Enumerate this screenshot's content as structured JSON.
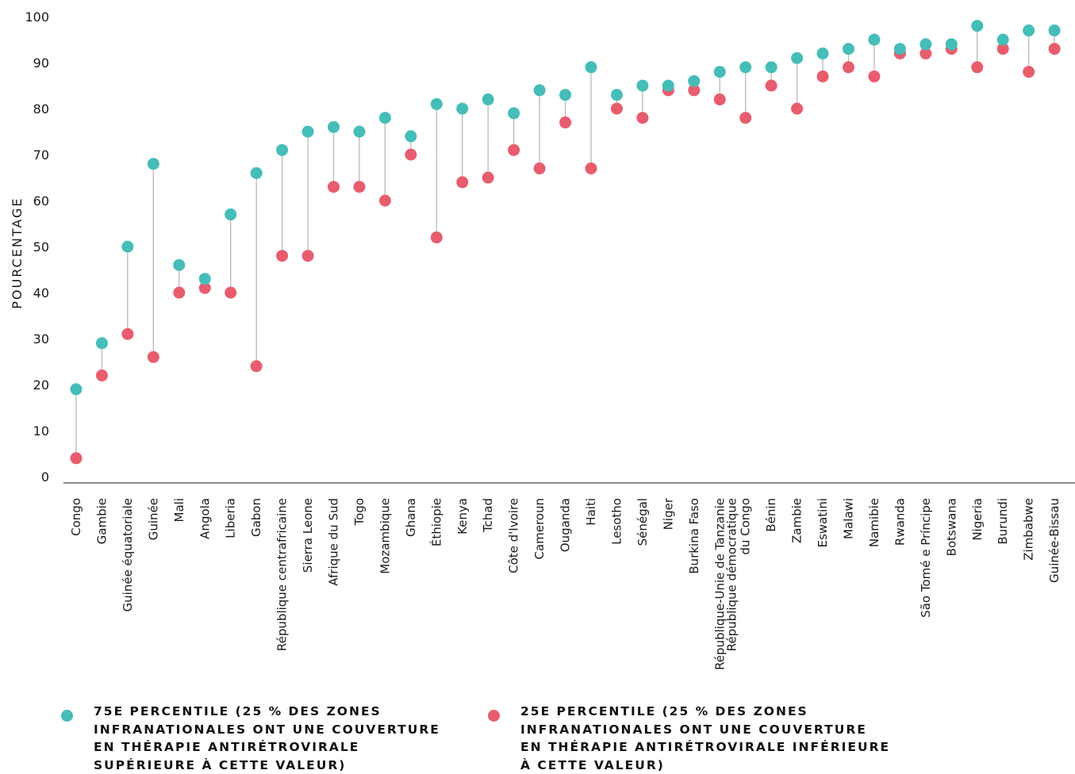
{
  "chart_data": {
    "type": "dumbbell",
    "ylabel": "POURCENTAGE",
    "ylim": [
      0,
      100
    ],
    "yticks": [
      0,
      10,
      20,
      30,
      40,
      50,
      60,
      70,
      80,
      90,
      100
    ],
    "grid": false,
    "legend_position": "bottom",
    "categories": [
      "Congo",
      "Gambie",
      "Guinée équatoriale",
      "Guinée",
      "Mali",
      "Angola",
      "Liberia",
      "Gabon",
      "République centrafricaine",
      "Sierra Leone",
      "Afrique du Sud",
      "Togo",
      "Mozambique",
      "Ghana",
      "Éthiopie",
      "Kenya",
      "Tchad",
      "Côte d'Ivoire",
      "Cameroun",
      "Ouganda",
      "Haiti",
      "Lesotho",
      "Sénégal",
      "Niger",
      "Burkina Faso",
      "République-Unie de Tanzanie",
      "République démocratique\ndu Congo",
      "Bénin",
      "Zambie",
      "Eswatini",
      "Malawi",
      "Namibie",
      "Rwanda",
      "São Tomé e Príncipe",
      "Botswana",
      "Nigeria",
      "Burundi",
      "Zimbabwe",
      "Guinée-Bissau"
    ],
    "series": [
      {
        "name": "75E PERCENTILE (25 % DES ZONES INFRANATIONALES ONT UNE COUVERTURE EN THÉRAPIE ANTIRÉTROVIRALE SUPÉRIEURE À CETTE VALEUR)",
        "color": "#45bdb8",
        "values": [
          19,
          29,
          50,
          68,
          46,
          43,
          57,
          66,
          71,
          75,
          76,
          75,
          78,
          74,
          81,
          80,
          82,
          79,
          84,
          83,
          89,
          83,
          85,
          85,
          86,
          88,
          89,
          89,
          91,
          92,
          93,
          95,
          93,
          94,
          94,
          98,
          95,
          97,
          97
        ]
      },
      {
        "name": "25E PERCENTILE (25 % DES ZONES INFRANATIONALES ONT UNE COUVERTURE EN THÉRAPIE ANTIRÉTROVIRALE INFÉRIEURE À CETTE VALEUR)",
        "color": "#e85d6e",
        "values": [
          4,
          22,
          31,
          26,
          40,
          41,
          40,
          24,
          48,
          48,
          63,
          63,
          60,
          70,
          52,
          64,
          65,
          71,
          67,
          77,
          67,
          80,
          78,
          84,
          84,
          82,
          78,
          85,
          80,
          87,
          89,
          87,
          92,
          92,
          93,
          89,
          93,
          88,
          93
        ]
      }
    ]
  },
  "legend": {
    "items": [
      {
        "text": "75E PERCENTILE (25 % DES ZONES\nINFRANATIONALES ONT UNE COUVERTURE\nEN THÉRAPIE ANTIRÉTROVIRALE\nSUPÉRIEURE À CETTE VALEUR)",
        "color": "#45bdb8"
      },
      {
        "text": "25E PERCENTILE (25 % DES ZONES\nINFRANATIONALES ONT UNE COUVERTURE\nEN THÉRAPIE ANTIRÉTROVIRALE INFÉRIEURE\nÀ CETTE VALEUR)",
        "color": "#e85d6e"
      }
    ]
  }
}
